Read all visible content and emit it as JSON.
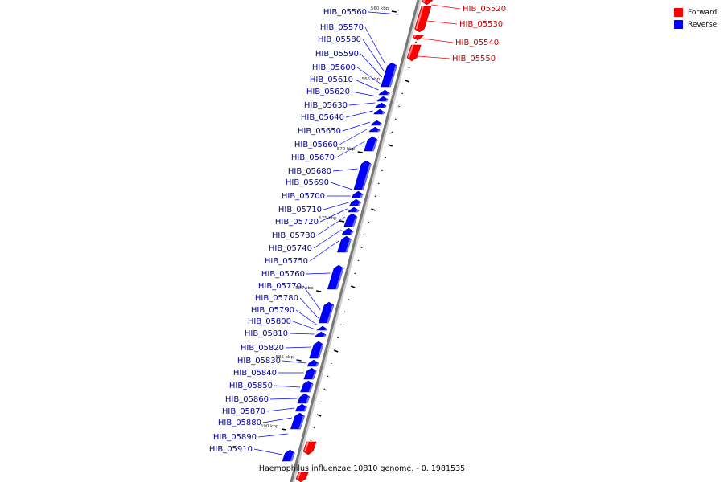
{
  "caption": "Haemophilus influenzae 10810 genome. - 0..1981535",
  "legend": [
    {
      "label": "Forward",
      "color": "#ff0000"
    },
    {
      "label": "Reverse",
      "color": "#0000ff"
    }
  ],
  "colors": {
    "forward": "#ff0000",
    "reverse": "#0000ff",
    "axis": "#777777"
  },
  "ticks": [
    "560 kbp",
    "565 kbp",
    "570 kbp",
    "575 kbp",
    "580 kbp",
    "585 kbp",
    "590 kbp"
  ],
  "forward_genes": [
    "HIB_05520",
    "HIB_05530",
    "HIB_05540",
    "HIB_05550"
  ],
  "reverse_genes": [
    "HIB_05560",
    "HIB_05570",
    "HIB_05580",
    "HIB_05590",
    "HIB_05600",
    "HIB_05610",
    "HIB_05620",
    "HIB_05630",
    "HIB_05640",
    "HIB_05650",
    "HIB_05660",
    "HIB_05670",
    "HIB_05680",
    "HIB_05690",
    "HIB_05700",
    "HIB_05710",
    "HIB_05720",
    "HIB_05730",
    "HIB_05740",
    "HIB_05750",
    "HIB_05760",
    "HIB_05770",
    "HIB_05780",
    "HIB_05790",
    "HIB_05800",
    "HIB_05810",
    "HIB_05820",
    "HIB_05830",
    "HIB_05840",
    "HIB_05850",
    "HIB_05860",
    "HIB_05870",
    "HIB_05880",
    "HIB_05890",
    "HIB_05910"
  ]
}
